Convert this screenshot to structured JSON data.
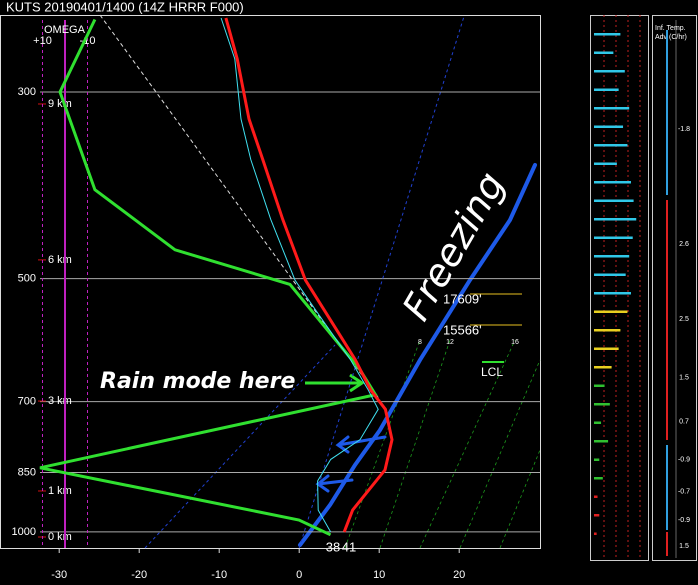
{
  "header": "KUTS   20190401/1400  (14Z  HRRR  F000)",
  "chart_data": {
    "type": "skewt",
    "log_scale": true,
    "ylim": [
      1045,
      243
    ],
    "yticks": [
      300,
      500,
      700,
      850,
      1000
    ],
    "xlim": [
      -37.4,
      30.1
    ],
    "xticks": [
      -30,
      -20,
      -10,
      0,
      10,
      20
    ],
    "heights": {
      "pressure": [
        310,
        475,
        699,
        894,
        1014
      ],
      "labels": [
        "9 km",
        "6 km",
        "3 km",
        "1 km",
        "0 km"
      ],
      "color": "#d01010"
    },
    "temperature": {
      "color": "#ff1a1a",
      "pressure": [
        1000,
        942,
        844,
        777,
        715,
        678,
        624,
        559,
        502,
        425,
        361,
        323,
        274,
        245
      ],
      "values": [
        5,
        5.2,
        7.7,
        7.4,
        5.4,
        2.8,
        -0.3,
        -5,
        -9.6,
        -14.8,
        -19.6,
        -22.9,
        -26.7,
        -29.7
      ]
    },
    "dewpoint": {
      "color": "#40e0f0",
      "pressure": [
        1000,
        942,
        870,
        820,
        777,
        715,
        678,
        624,
        559,
        502,
        425,
        361,
        323,
        274,
        245
      ],
      "values": [
        3.3,
        0.9,
        -0.3,
        0.5,
        3.4,
        4.5,
        2.5,
        -0.9,
        -6,
        -10.9,
        -16.3,
        -21.1,
        -23.9,
        -27,
        -30.3
      ]
    },
    "omega": {
      "label": "OMEGA",
      "color": "#30e030",
      "ticks": [
        {
          "value": 10,
          "label": "+10"
        },
        -10
      ],
      "pressure": [
        246,
        300,
        392,
        462,
        508,
        641,
        687,
        839,
        968,
        1008
      ],
      "values": [
        -13.3,
        2.2,
        -13.3,
        -48.9,
        -100,
        -131,
        -138,
        11.1,
        -104,
        -118
      ]
    },
    "surface": {
      "dewpoint_f": 38,
      "temperature_f": 41
    },
    "levels": {
      "labels": [
        "17609'",
        "15566'"
      ],
      "pressure": [
        530,
        577
      ],
      "color": "#e8c020"
    },
    "lcl": {
      "label": "LCL",
      "pressure": 645
    },
    "mixing_ratio_labels": [
      8,
      12,
      16
    ],
    "annotations": [
      "Rain mode here",
      "Freezing"
    ],
    "bars": {
      "xlim": [
        0,
        50
      ],
      "values": [
        30,
        22,
        35,
        28,
        40,
        33,
        38,
        26,
        42,
        45,
        48,
        44,
        40,
        36,
        42,
        38,
        30,
        28,
        20,
        12,
        18,
        8,
        16,
        6,
        10,
        4,
        6,
        3
      ],
      "colors": [
        "#30c8e8",
        "#30c8e8",
        "#30c8e8",
        "#30c8e8",
        "#30c8e8",
        "#30c8e8",
        "#30c8e8",
        "#30c8e8",
        "#30c8e8",
        "#30c8e8",
        "#30c8e8",
        "#30c8e8",
        "#30c8e8",
        "#30c8e8",
        "#30c8e8",
        "#e8d020",
        "#e8d020",
        "#e8d020",
        "#e8d020",
        "#30c030",
        "#30c030",
        "#30c030",
        "#30c030",
        "#30c030",
        "#30c030",
        "#e02020",
        "#e02020",
        "#e02020"
      ]
    },
    "advection": {
      "title": [
        "Inf. Temp.",
        "Adv (C/hr)"
      ],
      "pressure": [
        332,
        455,
        559,
        656,
        740,
        821,
        896,
        968,
        1040
      ],
      "values": [
        -1.8,
        2.6,
        2.5,
        1.5,
        0.7,
        -0.9,
        -0.7,
        -0.9,
        1.5
      ]
    }
  }
}
